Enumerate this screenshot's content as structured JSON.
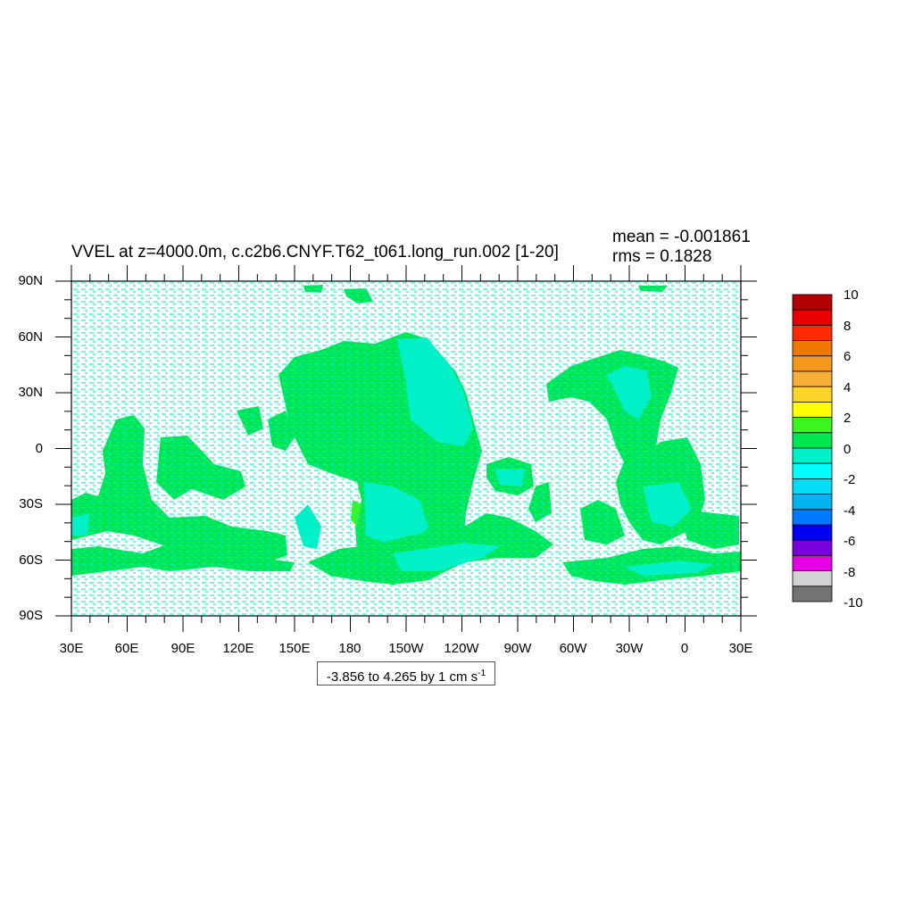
{
  "title": "VVEL at z=4000.0m, c.c2b6.CNYF.T62_t061.long_run.002 [1-20]",
  "stats": {
    "mean": "mean = -0.001861",
    "rms": "rms = 0.1828"
  },
  "range_label": {
    "text": "-3.856 to 4.265 by 1 cm s",
    "exponent": "-1"
  },
  "lat_labels": [
    "90N",
    "60N",
    "30N",
    "0",
    "30S",
    "60S",
    "90S"
  ],
  "lon_labels": [
    "30E",
    "60E",
    "90E",
    "120E",
    "150E",
    "180",
    "150W",
    "120W",
    "90W",
    "60W",
    "30W",
    "0",
    "30E"
  ],
  "colorbar": {
    "labels": [
      "10",
      "8",
      "6",
      "4",
      "2",
      "0",
      "-2",
      "-4",
      "-6",
      "-8",
      "-10"
    ],
    "colors": [
      "#b40000",
      "#e60000",
      "#ff2b00",
      "#f07800",
      "#f5961e",
      "#f7af37",
      "#ffd42a",
      "#ffff00",
      "#3cf51e",
      "#00e650",
      "#00f0c8",
      "#00ffff",
      "#00ddf5",
      "#00b4f0",
      "#0078ff",
      "#0000f5",
      "#7800dc",
      "#e600e6",
      "#d2d2d2",
      "#737373"
    ]
  },
  "legend_colors": {
    "ocean_slow": "#00f0c8",
    "ocean_pos": "#00e650",
    "ocean_strong": "#3cf51e",
    "land": "#ffffff"
  }
}
